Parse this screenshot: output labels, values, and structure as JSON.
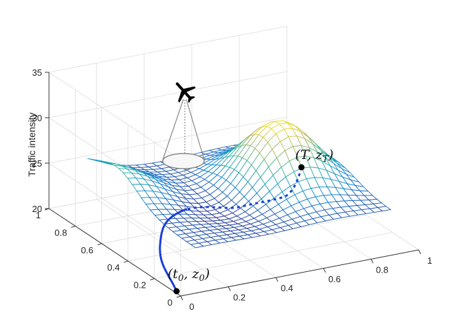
{
  "chart_data": {
    "type": "surface",
    "zlabel": "Traffic intensity",
    "xlim": [
      0,
      1
    ],
    "ylim": [
      0,
      1
    ],
    "zlim": [
      20,
      35
    ],
    "x_ticks": [
      "0",
      "0.2",
      "0.4",
      "0.6",
      "0.8",
      "1"
    ],
    "y_ticks": [
      "0",
      "0.2",
      "0.4",
      "0.6",
      "0.8",
      "1"
    ],
    "z_ticks": [
      "20",
      "25",
      "30",
      "35"
    ],
    "grid": true,
    "colormap": "parula",
    "start_point": {
      "t": "t",
      "sub_t": "0",
      "z": "z",
      "sub_z": "0"
    },
    "end_point": {
      "t": "T",
      "z": "z",
      "sub_z": "T"
    },
    "trajectory_color": "#1a3fd6",
    "aircraft_icon": "airplane-icon"
  }
}
